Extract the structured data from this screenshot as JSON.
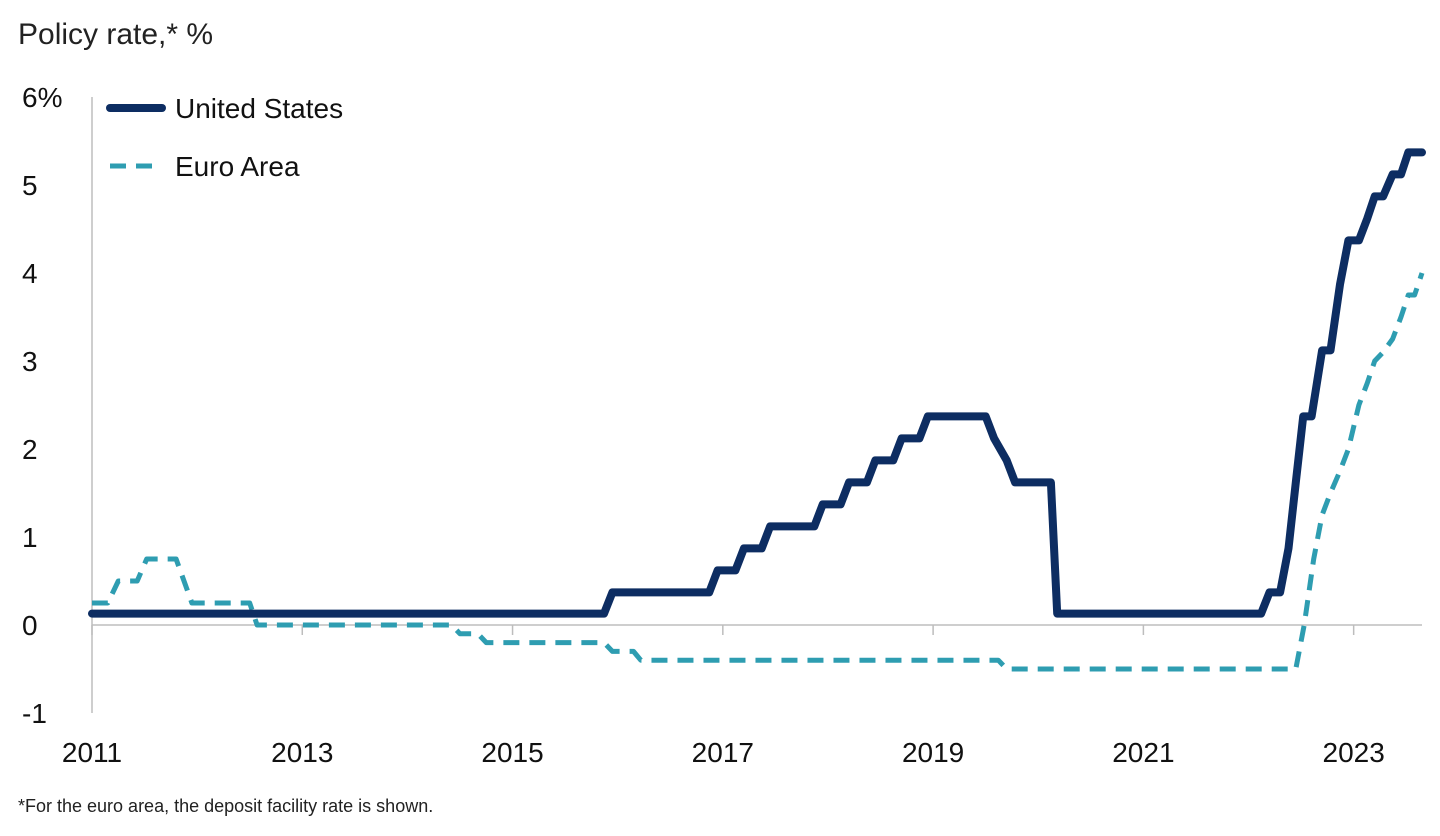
{
  "colors": {
    "us": "#0d2d62",
    "euro": "#2e9db1",
    "axis": "#bdbdbd"
  },
  "footnote": "*For the euro area, the deposit facility rate is shown.",
  "chart_data": {
    "type": "line",
    "title": "Policy rate,* %",
    "ylim": [
      -1,
      6
    ],
    "xlim": [
      2011.0,
      2023.65
    ],
    "y_ticks": [
      {
        "value": 6,
        "label": "6%"
      },
      {
        "value": 5,
        "label": "5"
      },
      {
        "value": 4,
        "label": "4"
      },
      {
        "value": 3,
        "label": "3"
      },
      {
        "value": 2,
        "label": "2"
      },
      {
        "value": 1,
        "label": "1"
      },
      {
        "value": 0,
        "label": "0"
      },
      {
        "value": -1,
        "label": "-1"
      }
    ],
    "x_ticks": [
      {
        "value": 2011,
        "label": "2011"
      },
      {
        "value": 2013,
        "label": "2013"
      },
      {
        "value": 2015,
        "label": "2015"
      },
      {
        "value": 2017,
        "label": "2017"
      },
      {
        "value": 2019,
        "label": "2019"
      },
      {
        "value": 2021,
        "label": "2021"
      },
      {
        "value": 2023,
        "label": "2023"
      }
    ],
    "legend_position": "top-left",
    "series": [
      {
        "name": "United States",
        "style": "solid",
        "x": [
          2011.0,
          2015.87,
          2015.95,
          2016.87,
          2016.95,
          2017.12,
          2017.2,
          2017.37,
          2017.45,
          2017.87,
          2017.95,
          2018.12,
          2018.2,
          2018.37,
          2018.45,
          2018.62,
          2018.7,
          2018.87,
          2018.95,
          2019.5,
          2019.58,
          2019.7,
          2019.78,
          2020.12,
          2020.18,
          2022.12,
          2022.2,
          2022.3,
          2022.38,
          2022.45,
          2022.52,
          2022.6,
          2022.7,
          2022.78,
          2022.87,
          2022.95,
          2023.05,
          2023.13,
          2023.2,
          2023.28,
          2023.37,
          2023.45,
          2023.52,
          2023.65
        ],
        "y": [
          0.13,
          0.13,
          0.37,
          0.37,
          0.62,
          0.62,
          0.87,
          0.87,
          1.12,
          1.12,
          1.37,
          1.37,
          1.62,
          1.62,
          1.87,
          1.87,
          2.12,
          2.12,
          2.37,
          2.37,
          2.12,
          1.87,
          1.62,
          1.62,
          0.13,
          0.13,
          0.37,
          0.37,
          0.87,
          1.62,
          2.37,
          2.37,
          3.12,
          3.12,
          3.87,
          4.37,
          4.37,
          4.62,
          4.87,
          4.87,
          5.12,
          5.12,
          5.37,
          5.37
        ]
      },
      {
        "name": "Euro Area",
        "style": "dashed",
        "x": [
          2011.0,
          2011.15,
          2011.25,
          2011.43,
          2011.52,
          2011.8,
          2011.95,
          2012.5,
          2012.57,
          2014.42,
          2014.5,
          2014.67,
          2014.75,
          2015.87,
          2015.95,
          2016.15,
          2016.22,
          2019.62,
          2019.7,
          2022.45,
          2022.53,
          2022.62,
          2022.7,
          2022.78,
          2022.87,
          2022.95,
          2023.05,
          2023.13,
          2023.2,
          2023.28,
          2023.37,
          2023.45,
          2023.52,
          2023.58,
          2023.65
        ],
        "y": [
          0.25,
          0.25,
          0.5,
          0.5,
          0.75,
          0.75,
          0.25,
          0.25,
          0.0,
          0.0,
          -0.1,
          -0.1,
          -0.2,
          -0.2,
          -0.3,
          -0.3,
          -0.4,
          -0.4,
          -0.5,
          -0.5,
          0.0,
          0.75,
          1.25,
          1.5,
          1.75,
          2.0,
          2.5,
          2.75,
          3.0,
          3.1,
          3.25,
          3.5,
          3.75,
          3.75,
          4.0
        ]
      }
    ]
  }
}
